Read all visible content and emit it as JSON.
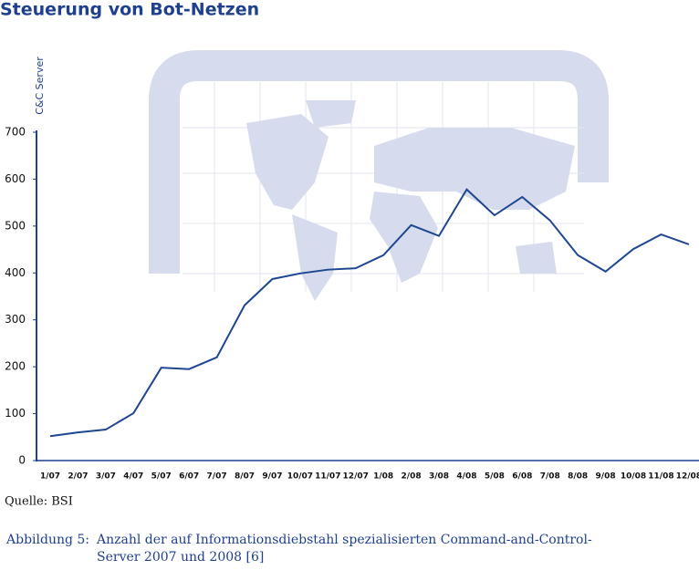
{
  "chart_data": {
    "type": "line",
    "title": "Steuerung von Bot-Netzen",
    "y_label": "C&C Server",
    "categories": [
      "1/07",
      "2/07",
      "3/07",
      "4/07",
      "5/07",
      "6/07",
      "7/07",
      "8/07",
      "9/07",
      "10/07",
      "11/07",
      "12/07",
      "1/08",
      "2/08",
      "3/08",
      "4/08",
      "5/08",
      "6/08",
      "7/08",
      "8/08",
      "9/08",
      "10/08",
      "11/08",
      "12/08"
    ],
    "series": [
      {
        "name": "C&C Server",
        "color": "#1f4690",
        "values": [
          52,
          60,
          66,
          101,
          198,
          195,
          220,
          331,
          387,
          399,
          407,
          410,
          438,
          502,
          479,
          578,
          523,
          562,
          512,
          438,
          403,
          451,
          482,
          461
        ]
      }
    ],
    "ylim": [
      0,
      700
    ],
    "yticks": [
      0,
      100,
      200,
      300,
      400,
      500,
      600,
      700
    ],
    "source": "Quelle:  BSI",
    "caption_label": "Abbildung 5:",
    "caption_lines": [
      "Anzahl der auf Informationsdiebstahl spezialisierten Command-and-Control-",
      "Server 2007 und 2008 [6]"
    ]
  }
}
